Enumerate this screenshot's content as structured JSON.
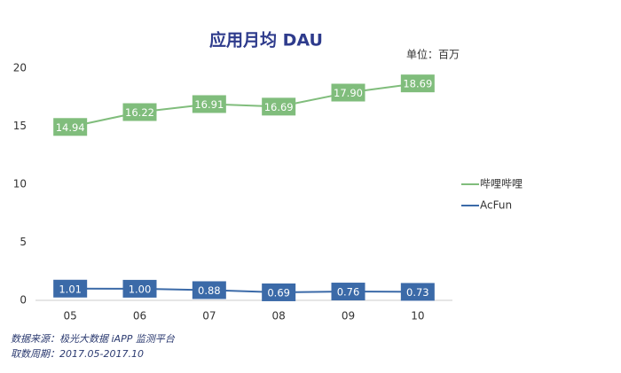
{
  "chart_data": {
    "type": "line",
    "title": "应用月均 DAU",
    "unit_note": "单位：百万",
    "categories": [
      "05",
      "06",
      "07",
      "08",
      "09",
      "10"
    ],
    "series": [
      {
        "name": "哔哩哔哩",
        "color": "#80bd7c",
        "values": [
          14.94,
          16.22,
          16.91,
          16.69,
          17.9,
          18.69
        ],
        "value_labels": [
          "14.94",
          "16.22",
          "16.91",
          "16.69",
          "17.90",
          "18.69"
        ]
      },
      {
        "name": "AcFun",
        "color": "#3b6aa8",
        "values": [
          1.01,
          1.0,
          0.88,
          0.69,
          0.76,
          0.73
        ],
        "value_labels": [
          "1.01",
          "1.00",
          "0.88",
          "0.69",
          "0.76",
          "0.73"
        ]
      }
    ],
    "ylim": [
      0,
      20
    ],
    "yticks": [
      0,
      5,
      10,
      15,
      20
    ],
    "grid": false,
    "legend": "right",
    "notes": [
      "数据来源：极光大数据 iAPP 监测平台",
      "取数周期：2017.05-2017.10"
    ]
  }
}
